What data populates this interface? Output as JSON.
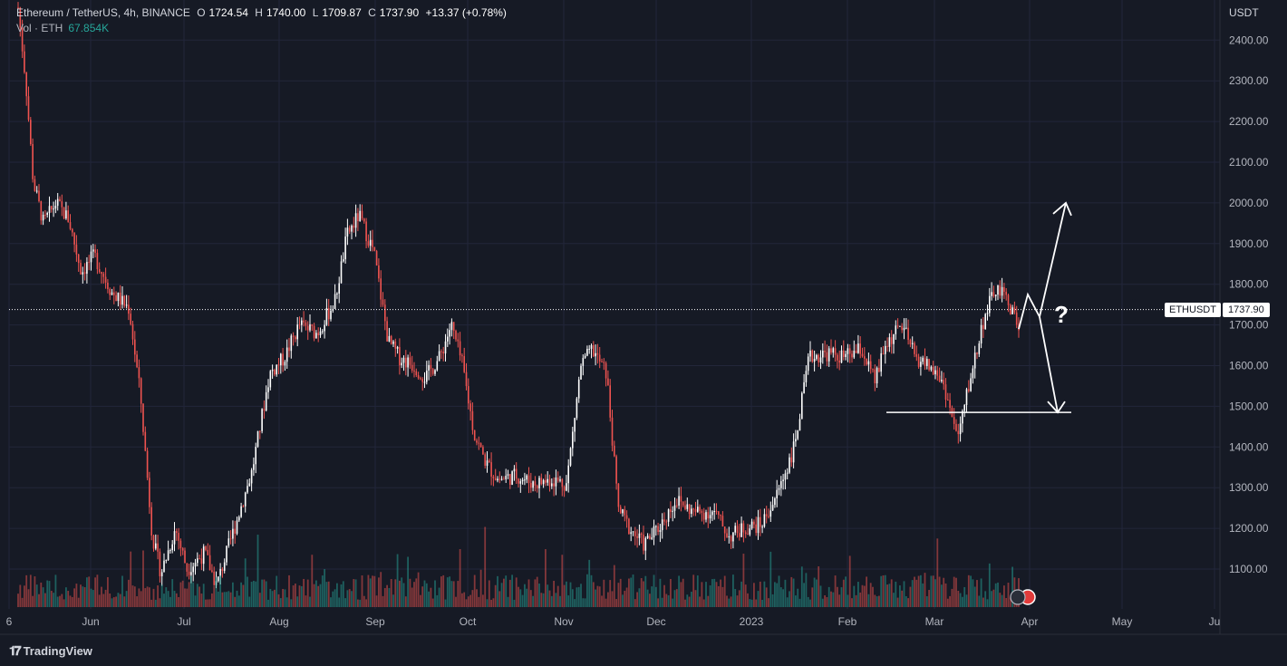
{
  "legend": {
    "pair": "Ethereum / TetherUS, 4h, BINANCE",
    "open_label": "O",
    "open": "1724.54",
    "high_label": "H",
    "high": "1740.00",
    "low_label": "L",
    "low": "1709.87",
    "close_label": "C",
    "close": "1737.90",
    "change": "+13.37 (+0.78%)",
    "vol_label": "Vol · ETH",
    "vol_value": "67.854K"
  },
  "axis": {
    "currency": "USDT"
  },
  "last_price": {
    "symbol": "ETHUSDT",
    "value": "1737.90"
  },
  "annotation": {
    "question": "?"
  },
  "branding": {
    "name": "TradingView"
  },
  "colors": {
    "background": "#161a25",
    "up": "#ffffff",
    "down": "#ef5350",
    "vol_up": "#26a69a",
    "vol_down": "#ef5350",
    "grid": "#22263a",
    "axis_text": "#b2b5be"
  },
  "chart_data": {
    "type": "candlestick",
    "symbol": "ETHUSDT",
    "interval": "4h",
    "exchange": "BINANCE",
    "grid": true,
    "ylim": [
      1020,
      2500
    ],
    "y_ticks": [
      1100,
      1200,
      1300,
      1400,
      1500,
      1600,
      1700,
      1800,
      1900,
      2000,
      2100,
      2200,
      2300,
      2400
    ],
    "x_ticks": [
      "6",
      "Jun",
      "Jul",
      "Aug",
      "Sep",
      "Oct",
      "Nov",
      "Dec",
      "2023",
      "Feb",
      "Mar",
      "Apr",
      "May",
      "Ju"
    ],
    "price_path": [
      [
        0,
        2480
      ],
      [
        0.3,
        2300
      ],
      [
        0.6,
        2050
      ],
      [
        1,
        1950
      ],
      [
        1.5,
        2000
      ],
      [
        2,
        1960
      ],
      [
        2.5,
        1830
      ],
      [
        3,
        1870
      ],
      [
        3.6,
        1780
      ],
      [
        4.2,
        1740
      ],
      [
        4.6,
        1520
      ],
      [
        5,
        1180
      ],
      [
        5.3,
        1090
      ],
      [
        5.8,
        1200
      ],
      [
        6.2,
        1100
      ],
      [
        6.8,
        1140
      ],
      [
        7.2,
        1060
      ],
      [
        7.8,
        1200
      ],
      [
        8.4,
        1340
      ],
      [
        9,
        1580
      ],
      [
        9.5,
        1620
      ],
      [
        10,
        1700
      ],
      [
        10.6,
        1680
      ],
      [
        11.2,
        1760
      ],
      [
        11.6,
        1920
      ],
      [
        12,
        1970
      ],
      [
        12.5,
        1880
      ],
      [
        13,
        1660
      ],
      [
        13.4,
        1620
      ],
      [
        13.9,
        1600
      ],
      [
        14.3,
        1570
      ],
      [
        14.8,
        1620
      ],
      [
        15.2,
        1700
      ],
      [
        15.6,
        1600
      ],
      [
        16,
        1430
      ],
      [
        16.4,
        1360
      ],
      [
        16.8,
        1320
      ],
      [
        17.4,
        1330
      ],
      [
        18,
        1310
      ],
      [
        18.6,
        1320
      ],
      [
        19.1,
        1310
      ],
      [
        19.6,
        1600
      ],
      [
        20,
        1640
      ],
      [
        20.5,
        1580
      ],
      [
        20.9,
        1250
      ],
      [
        21.3,
        1200
      ],
      [
        21.8,
        1160
      ],
      [
        22.3,
        1200
      ],
      [
        22.9,
        1270
      ],
      [
        23.5,
        1240
      ],
      [
        24.2,
        1240
      ],
      [
        24.7,
        1180
      ],
      [
        25.2,
        1200
      ],
      [
        25.8,
        1210
      ],
      [
        26.3,
        1280
      ],
      [
        26.9,
        1400
      ],
      [
        27.4,
        1620
      ],
      [
        28,
        1630
      ],
      [
        28.6,
        1620
      ],
      [
        29.2,
        1640
      ],
      [
        29.7,
        1560
      ],
      [
        30.1,
        1650
      ],
      [
        30.7,
        1700
      ],
      [
        31.2,
        1620
      ],
      [
        31.7,
        1600
      ],
      [
        32.2,
        1560
      ],
      [
        32.7,
        1420
      ],
      [
        33.1,
        1560
      ],
      [
        33.6,
        1720
      ],
      [
        34,
        1790
      ],
      [
        34.4,
        1760
      ],
      [
        34.8,
        1690
      ]
    ],
    "volume_scale_note": "volume bars along bottom, colored by candle direction",
    "drawings": {
      "support_line": {
        "price": 1485,
        "from": "Feb",
        "to": "Apr"
      },
      "path_up_target": 2000,
      "path_down_target": 1485
    }
  }
}
